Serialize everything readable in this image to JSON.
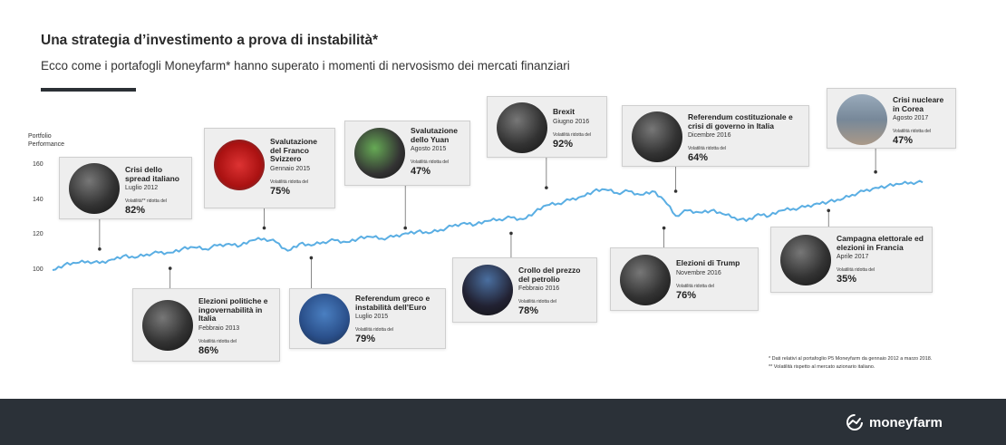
{
  "title": "Una strategia d’investimento a prova di instabilità*",
  "subtitle": "Ecco come i portafogli Moneyfarm* hanno superato i momenti di nervosismo dei mercati finanziari",
  "colors": {
    "line": "#5aaee3",
    "footer": "#2b3138",
    "card_bg": "#eeeeee"
  },
  "footnotes": [
    "* Dati relativi al portafoglio P5 Moneyfarm da gennaio 2012 a marzo 2018.",
    "** Volatilità rispetto al mercato azionario italiano."
  ],
  "logo": {
    "icon": "moneyfarm-logo-icon",
    "text": "moneyfarm"
  },
  "chart_data": {
    "type": "line",
    "ylabel": "Portfolio Performance",
    "yticks": [
      100,
      120,
      140,
      160
    ],
    "ylim": [
      100,
      160
    ],
    "xlim": [
      0,
      74
    ],
    "series": [
      {
        "x": [
          0,
          1,
          2,
          3,
          4,
          5,
          6,
          7,
          8,
          9,
          10,
          11,
          12,
          13,
          14,
          15,
          16,
          17,
          18,
          19,
          20,
          21,
          22,
          23,
          24,
          25,
          26,
          27,
          28,
          29,
          30,
          31,
          32,
          33,
          34,
          35,
          36,
          37,
          38,
          39,
          40,
          41,
          42,
          43,
          44,
          45,
          46,
          47,
          48,
          49,
          50,
          51,
          52,
          53,
          54,
          55,
          56,
          57,
          58,
          59,
          60,
          61,
          62,
          63,
          64,
          65,
          66,
          67,
          68,
          69,
          70,
          71,
          72,
          73,
          74
        ],
        "values": [
          100,
          103,
          104,
          105,
          104,
          106,
          108,
          107,
          109,
          110,
          110,
          112,
          113,
          112,
          114,
          115,
          114,
          117,
          118,
          116,
          111,
          115,
          114,
          116,
          117,
          116,
          118,
          119,
          118,
          119,
          121,
          122,
          121,
          123,
          125,
          127,
          126,
          128,
          129,
          130,
          129,
          133,
          137,
          138,
          140,
          142,
          145,
          146,
          144,
          145,
          143,
          145,
          140,
          131,
          134,
          133,
          134,
          132,
          130,
          128,
          132,
          131,
          134,
          135,
          136,
          138,
          139,
          140,
          143,
          145,
          147,
          148,
          149,
          150,
          150
        ]
      }
    ],
    "annotations": [
      {
        "key": "crisi",
        "title": "Crisi dello spread italiano",
        "date": "Luglio 2012",
        "vlabel": "Volatilità** ridotta del",
        "value": "82%",
        "icon": "portrait-photo",
        "mx": 4,
        "my": 112
      },
      {
        "key": "elezioni",
        "title": "Elezioni politiche e ingovernabilità in Italia",
        "date": "Febbraio 2013",
        "vlabel": "Volatilità ridotta del",
        "value": "86%",
        "icon": "portrait-photo",
        "mx": 10,
        "my": 101
      },
      {
        "key": "franco",
        "title": "Svalutazione del Franco Svizzero",
        "date": "Gennaio 2015",
        "vlabel": "Volatilità ridotta del",
        "value": "75%",
        "icon": "swiss-flag-photo",
        "mx": 18,
        "my": 124
      },
      {
        "key": "greco",
        "title": "Referendum greco e instabilità dell’Euro",
        "date": "Luglio 2015",
        "vlabel": "Volatilità ridotta del",
        "value": "79%",
        "icon": "euro-sign-photo",
        "mx": 22,
        "my": 107
      },
      {
        "key": "yuan",
        "title": "Svalutazione dello Yuan",
        "date": "Agosto 2015",
        "vlabel": "Volatilità ridotta del",
        "value": "47%",
        "icon": "stock-board-photo",
        "mx": 30,
        "my": 124
      },
      {
        "key": "petrolio",
        "title": "Crollo del prezzo del petrolio",
        "date": "Febbraio 2016",
        "vlabel": "Volatilità ridotta del",
        "value": "78%",
        "icon": "oil-rig-photo",
        "mx": 39,
        "my": 121
      },
      {
        "key": "brexit",
        "title": "Brexit",
        "date": "Giugno 2016",
        "vlabel": "Volatilità ridotta del",
        "value": "92%",
        "icon": "portrait-photo",
        "mx": 42,
        "my": 147
      },
      {
        "key": "referendum",
        "title": "Referendum costituzionale e crisi di governo in Italia",
        "date": "Dicembre 2016",
        "vlabel": "Volatilità ridotta del",
        "value": "64%",
        "icon": "portrait-photo",
        "mx": 53,
        "my": 145
      },
      {
        "key": "trump",
        "title": "Elezioni di  Trump",
        "date": "Novembre 2016",
        "vlabel": "Volatilità ridotta del",
        "value": "76%",
        "icon": "portrait-photo",
        "mx": 52,
        "my": 124
      },
      {
        "key": "francia",
        "title": "Campagna elettorale ed elezioni in Francia",
        "date": "Aprile 2017",
        "vlabel": "Volatilità ridotta del",
        "value": "35%",
        "icon": "portrait-photo",
        "mx": 66,
        "my": 134
      },
      {
        "key": "corea",
        "title": "Crisi nucleare in Corea",
        "date": "Agosto 2017",
        "vlabel": "Volatilità ridotta del",
        "value": "47%",
        "icon": "landscape-photo",
        "mx": 70,
        "my": 156
      }
    ]
  }
}
